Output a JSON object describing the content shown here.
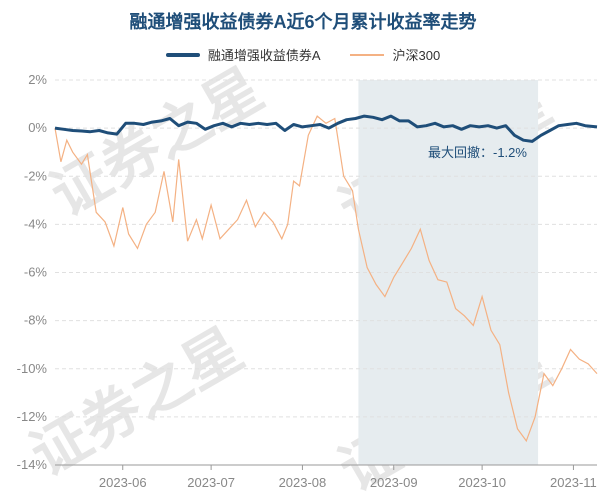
{
  "title": "融通增强收益债券A近6个月累计收益率走势",
  "legend": {
    "fund_label": "融通增强收益债券A",
    "index_label": "沪深300"
  },
  "annotation": "最大回撤：-1.2%",
  "watermark": "证券之星",
  "colors": {
    "fund": "#1f4e79",
    "index": "#f4b183",
    "drawdown_shade": "#e6ecef",
    "grid": "#e0e0e0",
    "axis_text": "#888888"
  },
  "chart_data": {
    "type": "line",
    "ylabel": "",
    "xlabel": "",
    "ylim": [
      -14,
      2
    ],
    "yticks": [
      2,
      0,
      -2,
      -4,
      -6,
      -8,
      -10,
      -12,
      -14
    ],
    "ytick_labels": [
      "2%",
      "0%",
      "-2%",
      "-4%",
      "-6%",
      "-8%",
      "-10%",
      "-12%",
      "-14%"
    ],
    "x_start": "2023-05-09",
    "x_end": "2023-11-09",
    "xticks": [
      "2023-06-01",
      "2023-07-01",
      "2023-08-01",
      "2023-09-01",
      "2023-10-01",
      "2023-11-01"
    ],
    "xtick_labels": [
      "2023-06",
      "2023-07",
      "2023-08",
      "2023-09",
      "2023-10",
      "2023-11"
    ],
    "drawdown_period": [
      "2023-08-20",
      "2023-10-20"
    ],
    "series": [
      {
        "name": "融通增强收益债券A",
        "x": [
          "2023-05-09",
          "2023-05-12",
          "2023-05-15",
          "2023-05-18",
          "2023-05-21",
          "2023-05-24",
          "2023-05-27",
          "2023-05-30",
          "2023-06-02",
          "2023-06-05",
          "2023-06-08",
          "2023-06-11",
          "2023-06-14",
          "2023-06-17",
          "2023-06-20",
          "2023-06-23",
          "2023-06-26",
          "2023-06-29",
          "2023-07-02",
          "2023-07-05",
          "2023-07-08",
          "2023-07-11",
          "2023-07-14",
          "2023-07-17",
          "2023-07-20",
          "2023-07-23",
          "2023-07-26",
          "2023-07-29",
          "2023-08-01",
          "2023-08-04",
          "2023-08-07",
          "2023-08-10",
          "2023-08-13",
          "2023-08-16",
          "2023-08-19",
          "2023-08-22",
          "2023-08-25",
          "2023-08-28",
          "2023-08-31",
          "2023-09-03",
          "2023-09-06",
          "2023-09-09",
          "2023-09-12",
          "2023-09-15",
          "2023-09-18",
          "2023-09-21",
          "2023-09-24",
          "2023-09-27",
          "2023-09-30",
          "2023-10-03",
          "2023-10-06",
          "2023-10-09",
          "2023-10-12",
          "2023-10-15",
          "2023-10-18",
          "2023-10-21",
          "2023-10-24",
          "2023-10-27",
          "2023-10-30",
          "2023-11-02",
          "2023-11-05",
          "2023-11-09"
        ],
        "values": [
          0.0,
          -0.05,
          -0.1,
          -0.12,
          -0.15,
          -0.1,
          -0.2,
          -0.25,
          0.2,
          0.2,
          0.15,
          0.25,
          0.3,
          0.4,
          0.1,
          0.25,
          0.2,
          -0.05,
          0.1,
          0.2,
          0.05,
          0.2,
          0.15,
          0.2,
          0.15,
          0.2,
          -0.1,
          0.15,
          0.05,
          0.1,
          0.15,
          0.0,
          0.2,
          0.35,
          0.4,
          0.5,
          0.45,
          0.35,
          0.5,
          0.3,
          0.3,
          0.05,
          0.1,
          0.2,
          0.05,
          0.1,
          -0.05,
          0.1,
          0.05,
          0.1,
          0.0,
          0.1,
          -0.3,
          -0.5,
          -0.55,
          -0.3,
          -0.1,
          0.1,
          0.15,
          0.2,
          0.1,
          0.05
        ]
      },
      {
        "name": "沪深300",
        "x": [
          "2023-05-09",
          "2023-05-11",
          "2023-05-13",
          "2023-05-15",
          "2023-05-18",
          "2023-05-20",
          "2023-05-23",
          "2023-05-26",
          "2023-05-29",
          "2023-06-01",
          "2023-06-03",
          "2023-06-06",
          "2023-06-09",
          "2023-06-12",
          "2023-06-15",
          "2023-06-18",
          "2023-06-20",
          "2023-06-23",
          "2023-06-26",
          "2023-06-28",
          "2023-07-01",
          "2023-07-04",
          "2023-07-07",
          "2023-07-10",
          "2023-07-13",
          "2023-07-16",
          "2023-07-19",
          "2023-07-22",
          "2023-07-25",
          "2023-07-27",
          "2023-07-29",
          "2023-07-31",
          "2023-08-03",
          "2023-08-06",
          "2023-08-09",
          "2023-08-12",
          "2023-08-15",
          "2023-08-18",
          "2023-08-20",
          "2023-08-23",
          "2023-08-26",
          "2023-08-29",
          "2023-09-01",
          "2023-09-04",
          "2023-09-07",
          "2023-09-10",
          "2023-09-13",
          "2023-09-16",
          "2023-09-19",
          "2023-09-22",
          "2023-09-25",
          "2023-09-28",
          "2023-10-01",
          "2023-10-04",
          "2023-10-07",
          "2023-10-10",
          "2023-10-13",
          "2023-10-16",
          "2023-10-19",
          "2023-10-22",
          "2023-10-25",
          "2023-10-28",
          "2023-10-31",
          "2023-11-03",
          "2023-11-06",
          "2023-11-09"
        ],
        "values": [
          0.0,
          -1.4,
          -0.5,
          -1.0,
          -1.5,
          -1.1,
          -3.5,
          -3.9,
          -4.9,
          -3.3,
          -4.4,
          -5.0,
          -4.0,
          -3.5,
          -1.8,
          -3.9,
          -1.3,
          -4.7,
          -3.8,
          -4.6,
          -3.2,
          -4.6,
          -4.2,
          -3.8,
          -3.0,
          -4.1,
          -3.5,
          -3.9,
          -4.6,
          -4.0,
          -2.2,
          -2.4,
          -0.3,
          0.5,
          0.2,
          0.4,
          -2.0,
          -2.6,
          -4.2,
          -5.8,
          -6.5,
          -7.0,
          -6.2,
          -5.6,
          -5.0,
          -4.2,
          -5.5,
          -6.3,
          -6.4,
          -7.5,
          -7.8,
          -8.2,
          -7.0,
          -8.4,
          -9.0,
          -11.0,
          -12.5,
          -13.0,
          -12.0,
          -10.2,
          -10.7,
          -10.0,
          -9.2,
          -9.6,
          -9.8,
          -10.2
        ]
      }
    ]
  }
}
